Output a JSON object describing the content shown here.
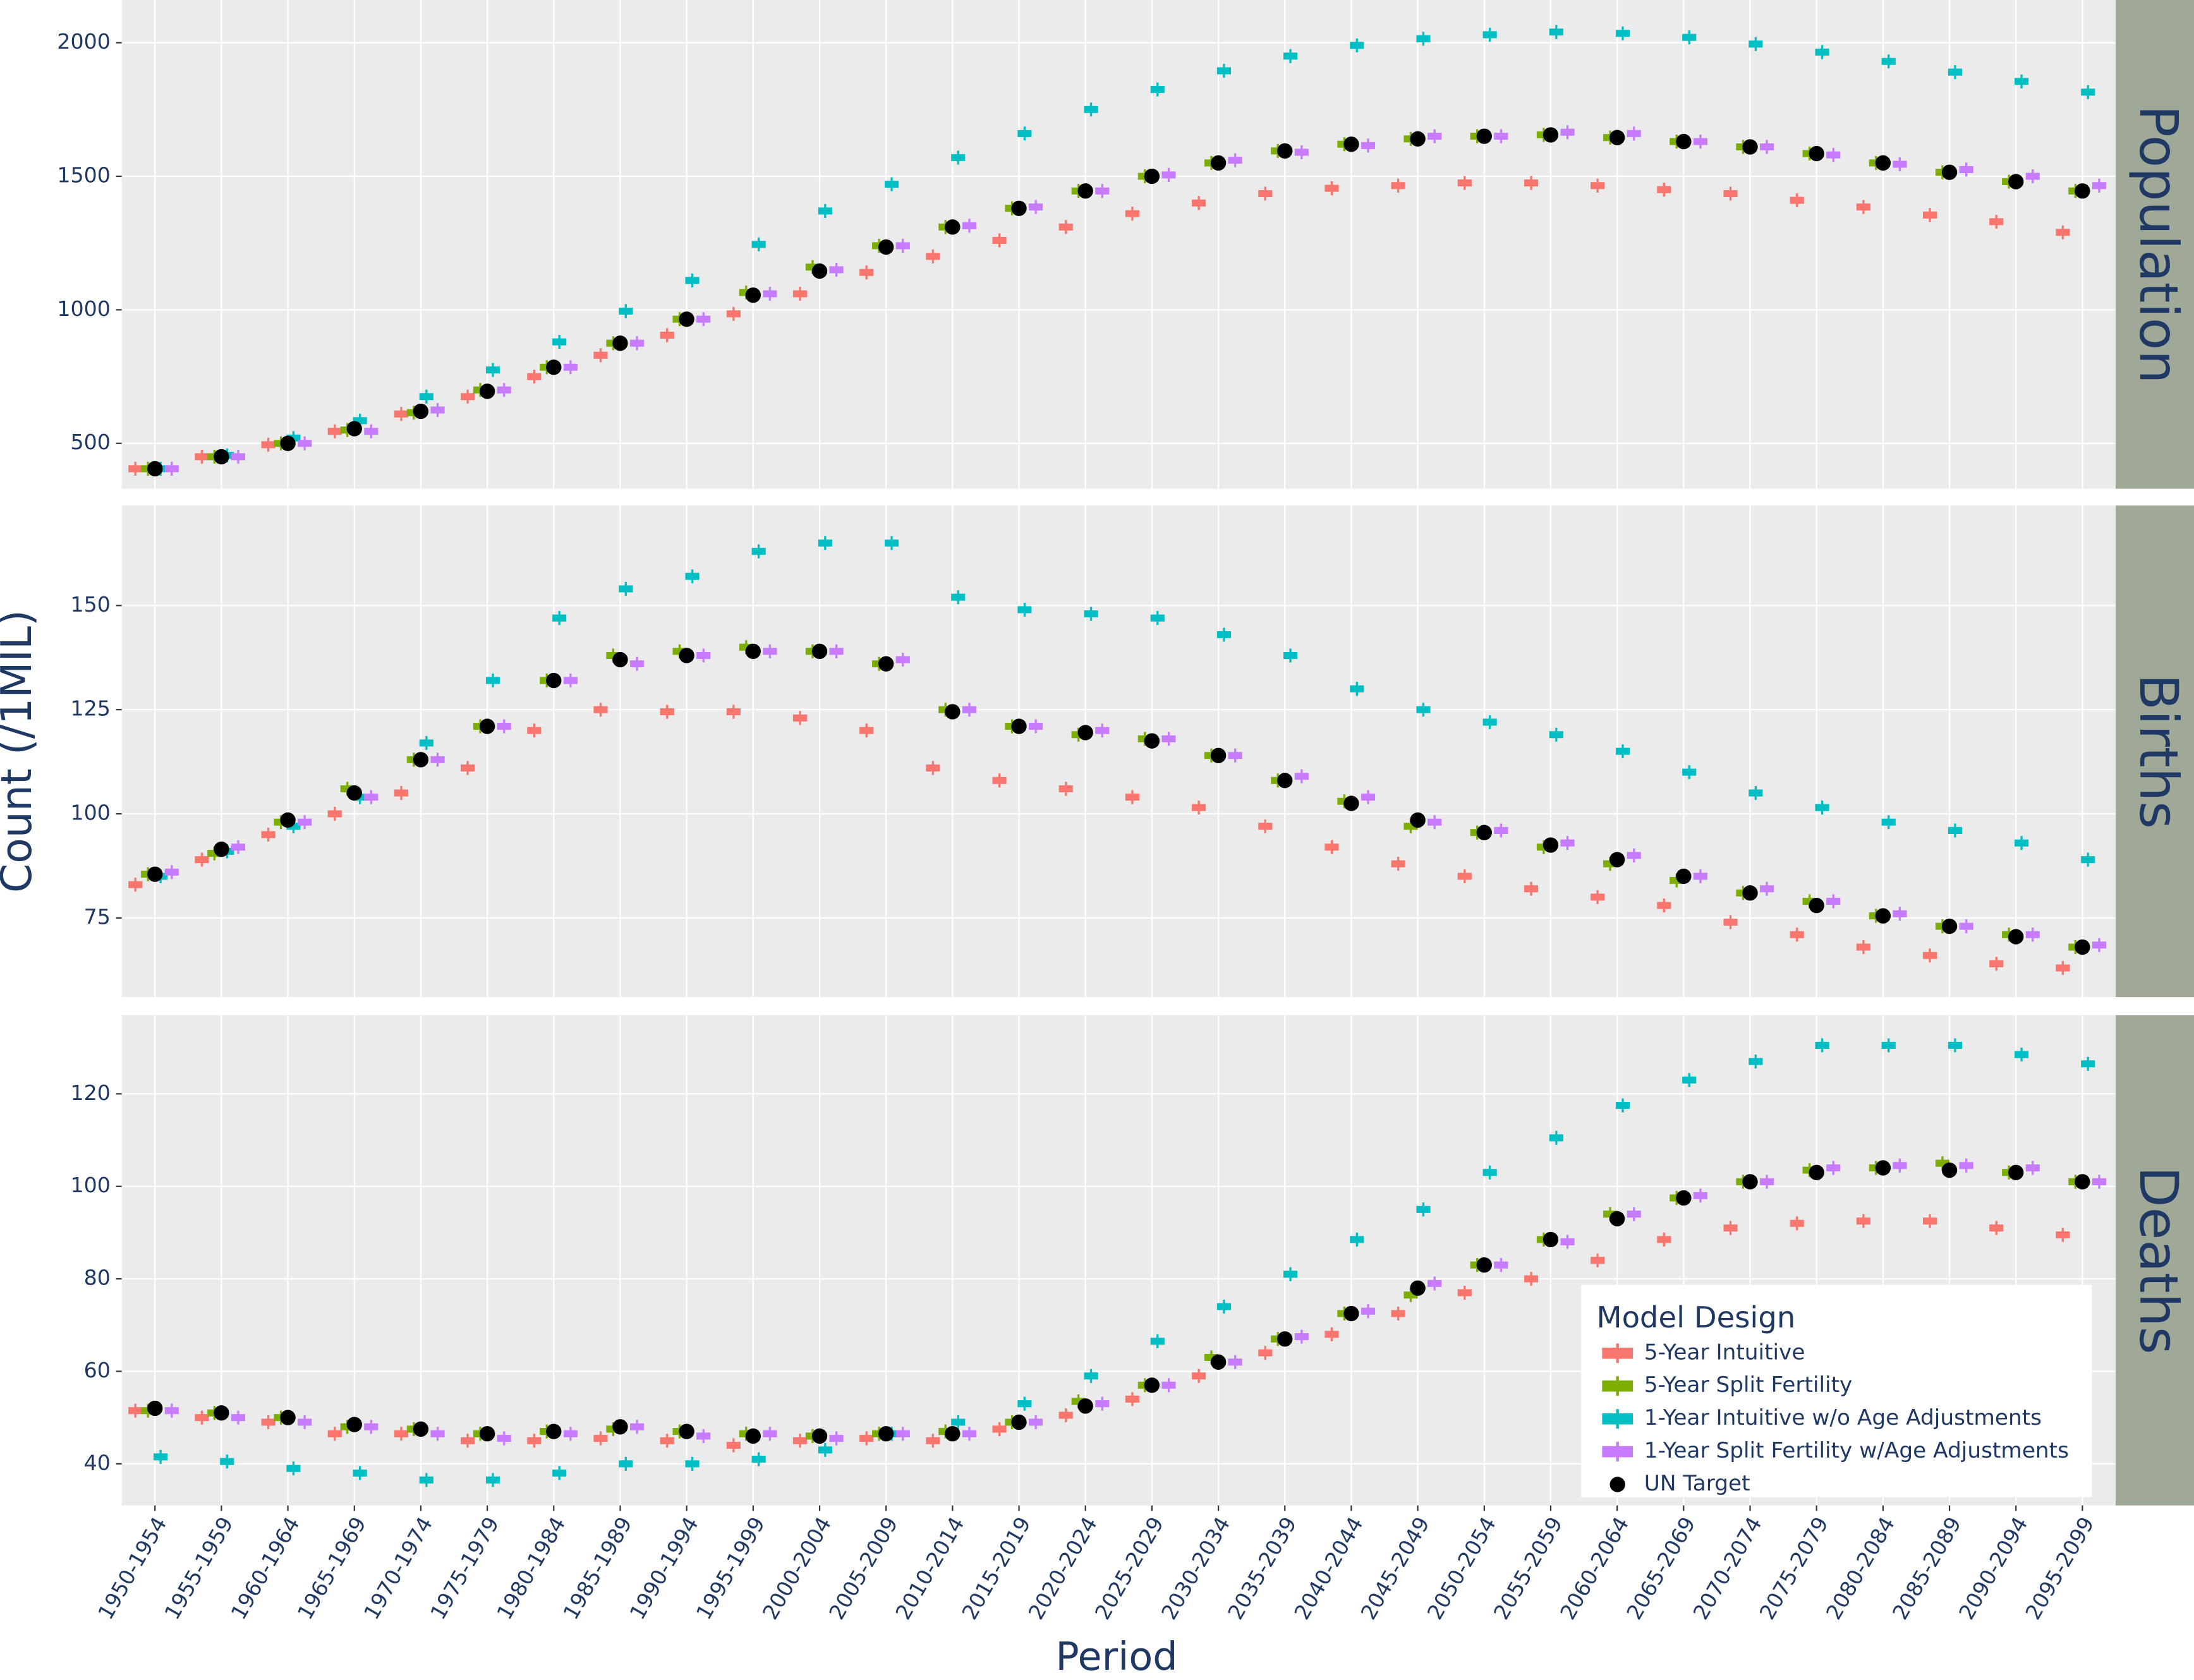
{
  "x_label": "Period",
  "y_label": "Count (/1MIL)",
  "legend": {
    "title": "Model Design",
    "entries": [
      {
        "name": "5-Year Intuitive",
        "color": "#f8766d",
        "marker": "box"
      },
      {
        "name": "5-Year Split Fertility",
        "color": "#7cae00",
        "marker": "box"
      },
      {
        "name": "1-Year Intuitive w/o Age Adjustments",
        "color": "#00bfc4",
        "marker": "box"
      },
      {
        "name": "1-Year Split Fertility w/Age Adjustments",
        "color": "#c77cff",
        "marker": "box"
      },
      {
        "name": "UN Target",
        "color": "#000000",
        "marker": "point"
      }
    ]
  },
  "categories": [
    "1950-1954",
    "1955-1959",
    "1960-1964",
    "1965-1969",
    "1970-1974",
    "1975-1979",
    "1980-1984",
    "1985-1989",
    "1990-1994",
    "1995-1999",
    "2000-2004",
    "2005-2009",
    "2010-2014",
    "2015-2019",
    "2020-2024",
    "2025-2029",
    "2030-2034",
    "2035-2039",
    "2040-2044",
    "2045-2049",
    "2050-2054",
    "2055-2059",
    "2060-2064",
    "2065-2069",
    "2070-2074",
    "2075-2079",
    "2080-2084",
    "2085-2089",
    "2090-2094",
    "2095-2099"
  ],
  "chart_data": [
    {
      "type": "dot",
      "title": "Population",
      "ylim": [
        330,
        2160
      ],
      "yticks": [
        500,
        1000,
        1500,
        2000
      ],
      "grid": true,
      "series": [
        {
          "values": [
            405,
            450,
            495,
            545,
            610,
            675,
            750,
            830,
            905,
            985,
            1060,
            1140,
            1200,
            1260,
            1310,
            1360,
            1400,
            1435,
            1455,
            1465,
            1475,
            1475,
            1465,
            1450,
            1435,
            1410,
            1385,
            1355,
            1330,
            1290
          ]
        },
        {
          "values": [
            405,
            450,
            500,
            550,
            615,
            700,
            785,
            875,
            965,
            1065,
            1160,
            1240,
            1310,
            1380,
            1445,
            1500,
            1550,
            1595,
            1620,
            1640,
            1650,
            1655,
            1645,
            1630,
            1610,
            1585,
            1550,
            1515,
            1480,
            1445
          ]
        },
        {
          "values": [
            405,
            455,
            520,
            585,
            675,
            775,
            880,
            995,
            1110,
            1245,
            1370,
            1470,
            1570,
            1660,
            1750,
            1825,
            1895,
            1950,
            1990,
            2015,
            2030,
            2040,
            2035,
            2020,
            1995,
            1965,
            1930,
            1890,
            1855,
            1815
          ]
        },
        {
          "values": [
            405,
            450,
            500,
            545,
            625,
            700,
            785,
            875,
            965,
            1060,
            1150,
            1240,
            1315,
            1385,
            1445,
            1505,
            1560,
            1590,
            1615,
            1650,
            1650,
            1665,
            1660,
            1630,
            1610,
            1580,
            1545,
            1525,
            1500,
            1465
          ]
        },
        {
          "values": [
            405,
            450,
            500,
            555,
            620,
            695,
            785,
            875,
            965,
            1055,
            1145,
            1235,
            1310,
            1380,
            1445,
            1500,
            1550,
            1595,
            1620,
            1640,
            1650,
            1655,
            1645,
            1630,
            1610,
            1585,
            1550,
            1515,
            1480,
            1445
          ]
        }
      ]
    },
    {
      "type": "dot",
      "title": "Births",
      "ylim": [
        56,
        174
      ],
      "yticks": [
        75,
        100,
        125,
        150
      ],
      "grid": true,
      "series": [
        {
          "values": [
            83,
            89,
            95,
            100,
            105,
            111,
            120,
            125,
            124.5,
            124.5,
            123,
            120,
            111,
            108,
            106,
            104,
            101.5,
            97,
            92,
            88,
            85,
            82,
            80,
            78,
            74,
            71,
            68,
            66,
            64,
            63
          ]
        },
        {
          "values": [
            85.5,
            90.5,
            98,
            106,
            113,
            121,
            132,
            138,
            139,
            140,
            139,
            136,
            125,
            121,
            119,
            118,
            114,
            108,
            103,
            97,
            95.5,
            92,
            88,
            84,
            81,
            79,
            75.5,
            73,
            71,
            68
          ]
        },
        {
          "values": [
            85,
            91,
            97,
            104,
            117,
            132,
            147,
            154,
            157,
            163,
            165,
            165,
            152,
            149,
            148,
            147,
            143,
            138,
            130,
            125,
            122,
            119,
            115,
            110,
            105,
            101.5,
            98,
            96,
            93,
            89
          ]
        },
        {
          "values": [
            86,
            92,
            98,
            104,
            113,
            121,
            132,
            136,
            138,
            139,
            139,
            137,
            125,
            121,
            120,
            118,
            114,
            109,
            104,
            98,
            96,
            93,
            90,
            85,
            82,
            79,
            76,
            73,
            71,
            68.5
          ]
        },
        {
          "values": [
            85.5,
            91.5,
            98.5,
            105,
            113,
            121,
            132,
            137,
            138,
            139,
            139,
            136,
            124.5,
            121,
            119.5,
            117.5,
            114,
            108,
            102.5,
            98.5,
            95.5,
            92.5,
            89,
            85,
            81,
            78,
            75.5,
            73,
            70.5,
            68
          ]
        }
      ]
    },
    {
      "type": "dot",
      "title": "Deaths",
      "ylim": [
        31,
        137
      ],
      "yticks": [
        40,
        60,
        80,
        100,
        120
      ],
      "grid": true,
      "series": [
        {
          "values": [
            51.5,
            50,
            49,
            46.5,
            46.5,
            45,
            45,
            45.5,
            45,
            44,
            45,
            45.5,
            45,
            47.5,
            50.5,
            54,
            59,
            64,
            68,
            72.5,
            77,
            80,
            84,
            88.5,
            91,
            92,
            92.5,
            92.5,
            91,
            89.5
          ]
        },
        {
          "values": [
            51.5,
            51,
            50,
            48,
            47.5,
            46.5,
            47,
            47.5,
            47,
            46.5,
            46,
            46.5,
            47,
            49,
            53.5,
            57,
            63,
            67,
            72.5,
            76.5,
            83,
            88.5,
            94,
            97.5,
            101,
            103.5,
            104,
            105,
            103,
            101
          ]
        },
        {
          "values": [
            41.5,
            40.5,
            39,
            38,
            36.5,
            36.5,
            38,
            40,
            40,
            41,
            43,
            46.5,
            49,
            53,
            59,
            66.5,
            74,
            81,
            88.5,
            95,
            103,
            110.5,
            117.5,
            123,
            127,
            130.5,
            130.5,
            130.5,
            128.5,
            126.5
          ]
        },
        {
          "values": [
            51.5,
            50,
            49,
            48,
            46.5,
            45.5,
            46.5,
            48,
            46,
            46.5,
            45.5,
            46.5,
            46.5,
            49,
            53,
            57,
            62,
            67.5,
            73,
            79,
            83,
            88,
            94,
            98,
            101,
            104,
            104.5,
            104.5,
            104,
            101
          ]
        },
        {
          "values": [
            52,
            51,
            50,
            48.5,
            47.5,
            46.5,
            47,
            48,
            47,
            46,
            46,
            46.5,
            46.5,
            49,
            52.5,
            57,
            62,
            67,
            72.5,
            78,
            83,
            88.5,
            93,
            97.5,
            101,
            103,
            104,
            103.5,
            103,
            101
          ]
        }
      ]
    }
  ]
}
